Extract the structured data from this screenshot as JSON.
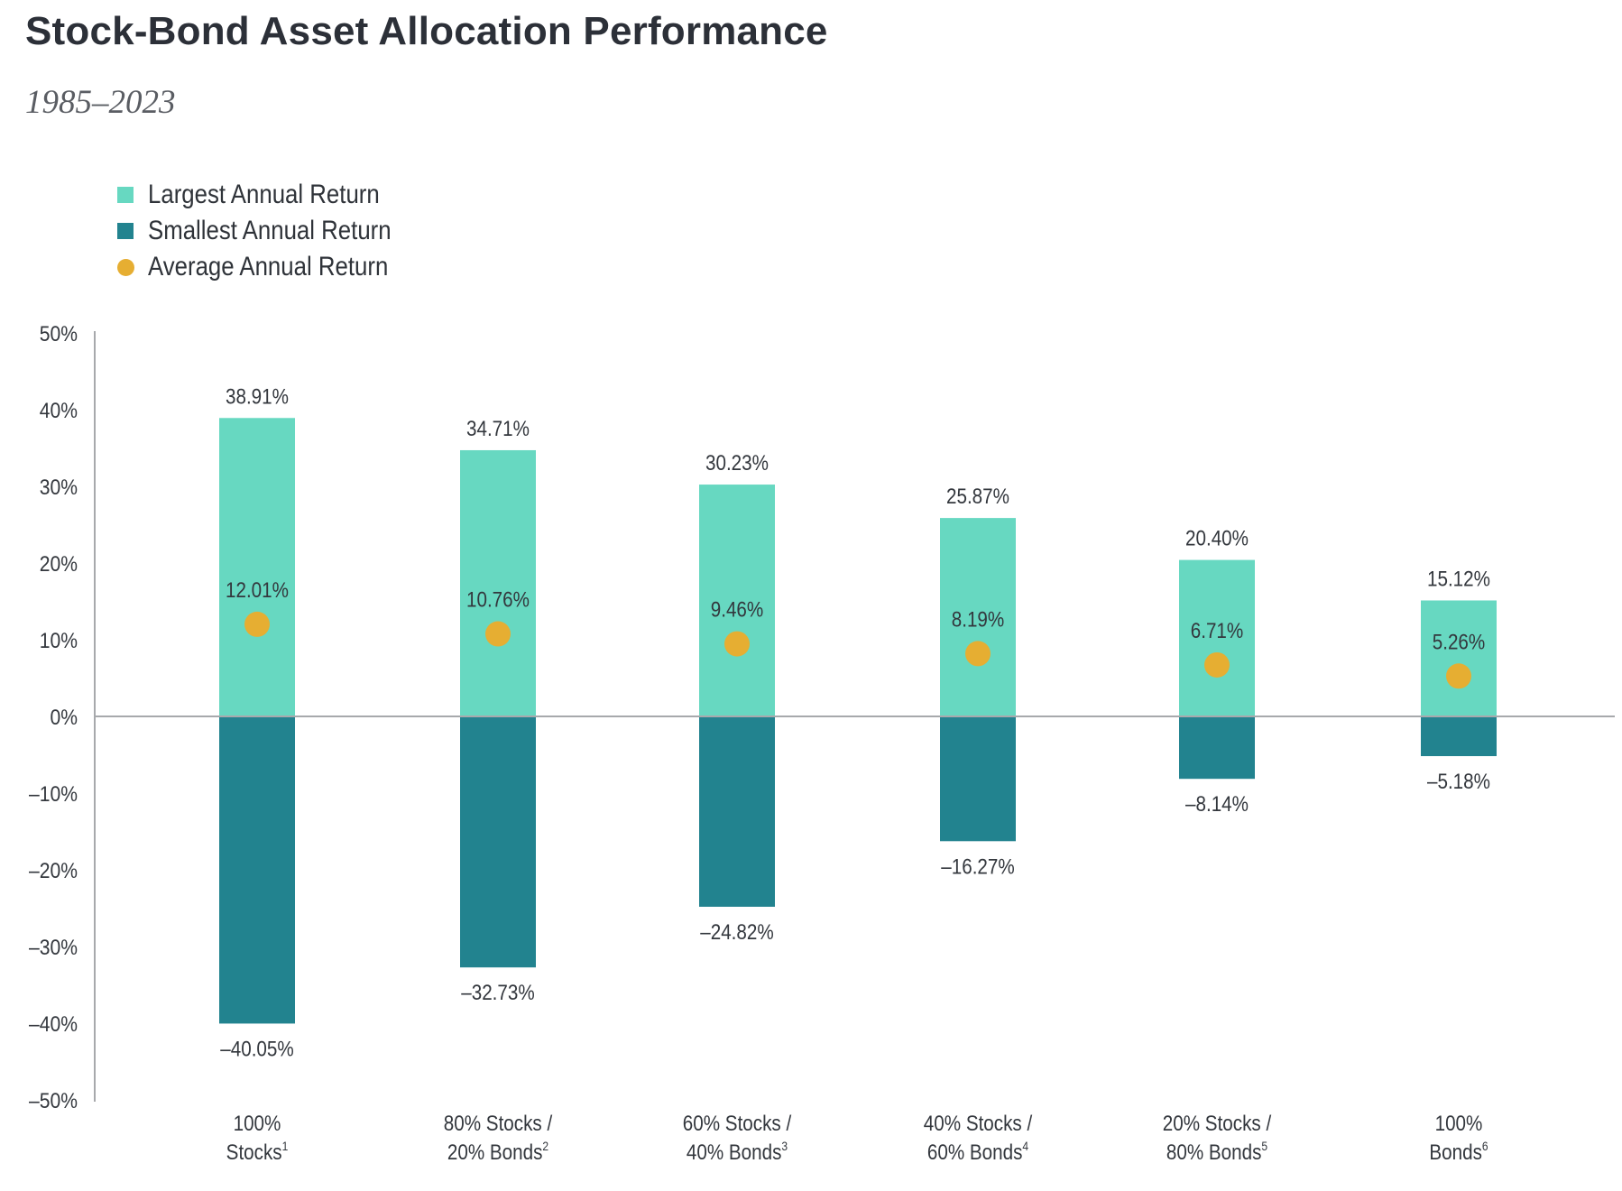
{
  "title": "Stock-Bond Asset Allocation Performance",
  "subtitle": "1985–2023",
  "legend": {
    "largest": "Largest Annual Return",
    "smallest": "Smallest Annual Return",
    "average": "Average Annual Return"
  },
  "colors": {
    "largest": "#67d8c1",
    "smallest": "#22838f",
    "average": "#e6ae32",
    "axis": "#a7a9ac"
  },
  "chart_data": {
    "type": "bar",
    "title": "Stock-Bond Asset Allocation Performance",
    "subtitle": "1985–2023",
    "xlabel": "",
    "ylabel": "",
    "ylim": [
      -50,
      50
    ],
    "yticks": [
      50,
      40,
      30,
      20,
      10,
      0,
      -10,
      -20,
      -30,
      -40,
      -50
    ],
    "ytick_labels": [
      "50%",
      "40%",
      "30%",
      "20%",
      "10%",
      "0%",
      "–10%",
      "–20%",
      "–30%",
      "–40%",
      "–50%"
    ],
    "legend_position": "top-left",
    "categories": [
      {
        "line1": "100%",
        "line2": "Stocks",
        "sup": "1"
      },
      {
        "line1": "80% Stocks /",
        "line2": "20% Bonds",
        "sup": "2"
      },
      {
        "line1": "60% Stocks /",
        "line2": "40% Bonds",
        "sup": "3"
      },
      {
        "line1": "40% Stocks /",
        "line2": "60% Bonds",
        "sup": "4"
      },
      {
        "line1": "20% Stocks /",
        "line2": "80% Bonds",
        "sup": "5"
      },
      {
        "line1": "100%",
        "line2": "Bonds",
        "sup": "6"
      }
    ],
    "series": [
      {
        "name": "Largest Annual Return",
        "values": [
          38.91,
          34.71,
          30.23,
          25.87,
          20.4,
          15.12
        ],
        "labels": [
          "38.91%",
          "34.71%",
          "30.23%",
          "25.87%",
          "20.40%",
          "15.12%"
        ]
      },
      {
        "name": "Smallest Annual Return",
        "values": [
          -40.05,
          -32.73,
          -24.82,
          -16.27,
          -8.14,
          -5.18
        ],
        "labels": [
          "–40.05%",
          "–32.73%",
          "–24.82%",
          "–16.27%",
          "–8.14%",
          "–5.18%"
        ]
      },
      {
        "name": "Average Annual Return",
        "values": [
          12.01,
          10.76,
          9.46,
          8.19,
          6.71,
          5.26
        ],
        "labels": [
          "12.01%",
          "10.76%",
          "9.46%",
          "8.19%",
          "6.71%",
          "5.26%"
        ]
      }
    ]
  }
}
